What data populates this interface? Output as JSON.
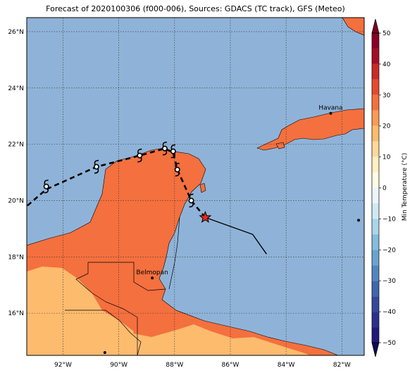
{
  "title": "Forecast of 2020100306 (f000-006), Sources: GDACS (TC track), GFS (Meteo)",
  "colors": {
    "ocean": "#8fb3d8",
    "land_warm": "#f4703e",
    "land_mild": "#fdbb6e",
    "track": "#000000",
    "current_position": "#e8291c"
  },
  "map": {
    "lon_range": [
      -93.3,
      -81.2
    ],
    "lat_range": [
      14.5,
      26.5
    ],
    "x_ticks": [
      {
        "lon": -92,
        "label": "92°W"
      },
      {
        "lon": -90,
        "label": "90°W"
      },
      {
        "lon": -88,
        "label": "88°W"
      },
      {
        "lon": -86,
        "label": "86°W"
      },
      {
        "lon": -84,
        "label": "84°W"
      },
      {
        "lon": -82,
        "label": "82°W"
      }
    ],
    "y_ticks": [
      {
        "lat": 16,
        "label": "16°N"
      },
      {
        "lat": 18,
        "label": "18°N"
      },
      {
        "lat": 20,
        "label": "20°N"
      },
      {
        "lat": 22,
        "label": "22°N"
      },
      {
        "lat": 24,
        "label": "24°N"
      },
      {
        "lat": 26,
        "label": "26°N"
      }
    ],
    "gridlines": true
  },
  "cities": [
    {
      "name": "Havana",
      "lon": -82.4,
      "lat": 23.1
    },
    {
      "name": "Belmopan",
      "lon": -88.8,
      "lat": 17.25
    }
  ],
  "unlabeled_points": [
    {
      "lon": -90.5,
      "lat": 14.6
    },
    {
      "lon": -81.4,
      "lat": 19.3
    }
  ],
  "track": {
    "past": [
      [
        -84.7,
        18.1
      ],
      [
        -85.2,
        18.8
      ],
      [
        -86.9,
        19.4
      ]
    ],
    "current": [
      -86.9,
      19.4
    ],
    "forecast": [
      [
        -86.9,
        19.4
      ],
      [
        -87.4,
        20.0
      ],
      [
        -87.9,
        21.1
      ],
      [
        -88.05,
        21.7
      ],
      [
        -88.35,
        21.85
      ],
      [
        -89.25,
        21.6
      ],
      [
        -90.8,
        21.2
      ],
      [
        -92.6,
        20.4
      ],
      [
        -93.3,
        19.8
      ]
    ],
    "storm_symbols": [
      [
        -87.4,
        20.0
      ],
      [
        -87.9,
        21.1
      ],
      [
        -88.05,
        21.75
      ],
      [
        -88.35,
        21.85
      ],
      [
        -89.25,
        21.6
      ],
      [
        -90.8,
        21.2
      ],
      [
        -92.6,
        20.5
      ]
    ]
  },
  "colorbar": {
    "label": "Min Temperature (°C)",
    "min": -50,
    "max": 50,
    "ticks": [
      {
        "value": 50,
        "label": "50"
      },
      {
        "value": 40,
        "label": "40"
      },
      {
        "value": 30,
        "label": "30"
      },
      {
        "value": 20,
        "label": "20"
      },
      {
        "value": 10,
        "label": "10"
      },
      {
        "value": 0,
        "label": "0"
      },
      {
        "value": -10,
        "label": "−10"
      },
      {
        "value": -20,
        "label": "−20"
      },
      {
        "value": -30,
        "label": "−30"
      },
      {
        "value": -40,
        "label": "−40"
      },
      {
        "value": -50,
        "label": "−50"
      }
    ],
    "bins": [
      {
        "from": 45,
        "to": 50,
        "color": "#8b0026"
      },
      {
        "from": 40,
        "to": 45,
        "color": "#a50f28"
      },
      {
        "from": 35,
        "to": 40,
        "color": "#c92a2a"
      },
      {
        "from": 30,
        "to": 35,
        "color": "#e54a2e"
      },
      {
        "from": 25,
        "to": 30,
        "color": "#f4703e"
      },
      {
        "from": 20,
        "to": 25,
        "color": "#fa9a55"
      },
      {
        "from": 15,
        "to": 20,
        "color": "#fdbb6e"
      },
      {
        "from": 10,
        "to": 15,
        "color": "#fed99a"
      },
      {
        "from": 5,
        "to": 10,
        "color": "#fff0c2"
      },
      {
        "from": 0,
        "to": 5,
        "color": "#fffbe6"
      },
      {
        "from": -5,
        "to": 0,
        "color": "#eaf6fb"
      },
      {
        "from": -10,
        "to": -5,
        "color": "#cfeaf3"
      },
      {
        "from": -15,
        "to": -10,
        "color": "#aad6ea"
      },
      {
        "from": -20,
        "to": -15,
        "color": "#86bcdc"
      },
      {
        "from": -25,
        "to": -20,
        "color": "#6aa3cf"
      },
      {
        "from": -30,
        "to": -25,
        "color": "#5286c0"
      },
      {
        "from": -35,
        "to": -30,
        "color": "#3f67ad"
      },
      {
        "from": -40,
        "to": -35,
        "color": "#34489a"
      },
      {
        "from": -45,
        "to": -40,
        "color": "#2d2f8c"
      },
      {
        "from": -50,
        "to": -45,
        "color": "#221a78"
      }
    ]
  }
}
